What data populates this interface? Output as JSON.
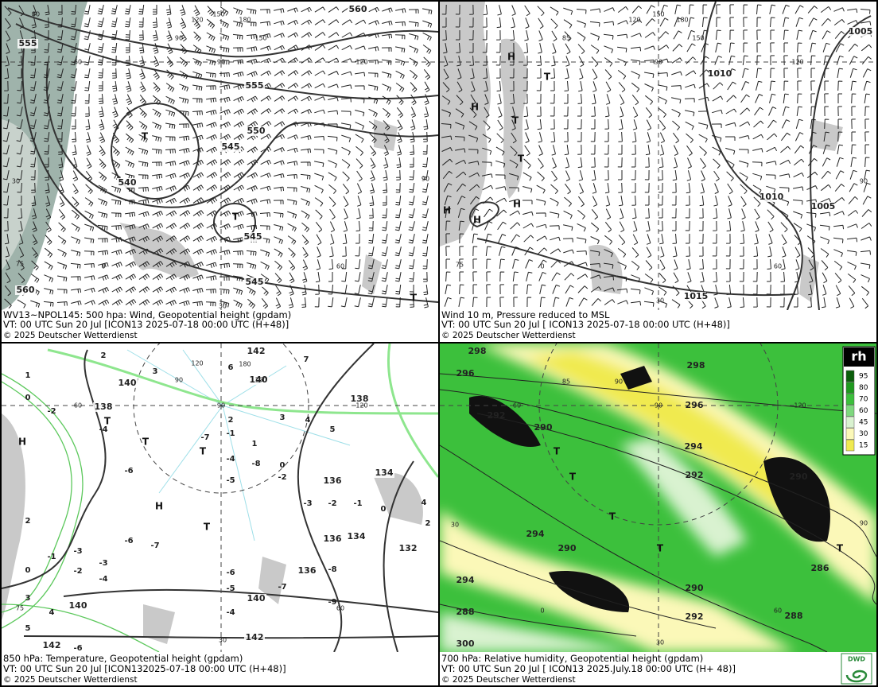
{
  "panels": [
    {
      "caption": [
        "WV13~NPOL145: 500 hpa: Wind, Geopotential height (gpdam)",
        "VT: 00 UTC Sun  20 Jul [ICON13 2025-07-18 00:00 UTC  (H+48)]",
        "© 2025 Deutscher Wetterdienst"
      ],
      "contour_labels": [
        "560",
        "555",
        "555",
        "550",
        "545",
        "540",
        "545",
        "545",
        "560"
      ],
      "markers": [
        "T",
        "T",
        "T"
      ],
      "grid_labels": [
        "80",
        "120",
        "150",
        "180",
        "150",
        "90",
        "60",
        "90",
        "120",
        "30",
        "90",
        "75",
        "0",
        "60",
        "30"
      ]
    },
    {
      "caption": [
        "Wind 10 m, Pressure reduced to MSL",
        "VT: 00 UTC Sun  20 Jul [ ICON13 2025-07-18 00:00 UTC (H+48)]",
        "© 2025 Deutscher Wetterdienst"
      ],
      "contour_labels": [
        "1005",
        "1010",
        "1010",
        "1005",
        "1015"
      ],
      "markers": [
        "H",
        "T",
        "H",
        "T",
        "T",
        "H",
        "H",
        "H"
      ],
      "grid_labels": [
        "120",
        "150",
        "180",
        "150",
        "85",
        "90",
        "120",
        "90",
        "75",
        "0",
        "60",
        "30"
      ]
    },
    {
      "caption": [
        "850 hPa:  Temperature, Geopotential height (gpdam)",
        "VT: 00 UTC Sun  20 Jul [ICON132025-07-18 00:00 UTC (H+48)]",
        "© 2025 Deutscher Wetterdienst"
      ],
      "contour_labels": [
        "142",
        "140",
        "140",
        "138",
        "138",
        "136",
        "134",
        "136",
        "134",
        "132",
        "136",
        "140",
        "140",
        "142",
        "142"
      ],
      "temperature_labels": [
        "1",
        "2",
        "3",
        "6",
        "7",
        "0",
        "-2",
        "-4",
        "2",
        "3",
        "4",
        "5",
        "-7",
        "-1",
        "1",
        "-4",
        "-8",
        "0",
        "-5",
        "-2",
        "-6",
        "-3",
        "-2",
        "-1",
        "0",
        "4",
        "2",
        "2",
        "-6",
        "-7",
        "-1",
        "-3",
        "-2",
        "-3",
        "-4",
        "0",
        "3",
        "4",
        "-6",
        "-5",
        "-7",
        "-8",
        "-4",
        "5",
        "-6",
        "-9"
      ],
      "markers": [
        "T",
        "T",
        "T",
        "H",
        "H",
        "T"
      ],
      "grid_labels": [
        "120",
        "180",
        "90",
        "150",
        "60",
        "90",
        "120",
        "75",
        "60",
        "30"
      ]
    },
    {
      "caption": [
        "700 hPa:  Relative humidity, Geopotential height (gpdam)",
        "VT: 00 UTC Sun  20 Jul [ ICON13  2025.July.18 00:00 UTC (H+ 48)]",
        "© 2025 Deutscher Wetterdienst"
      ],
      "contour_labels": [
        "298",
        "298",
        "296",
        "296",
        "292",
        "290",
        "294",
        "292",
        "290",
        "294",
        "290",
        "286",
        "290",
        "292",
        "288",
        "288",
        "300",
        "294"
      ],
      "markers": [
        "T",
        "T",
        "T",
        "T",
        "T"
      ],
      "grid_labels": [
        "85",
        "90",
        "60",
        "90",
        "120",
        "30",
        "90",
        "0",
        "60",
        "30"
      ]
    }
  ],
  "legend": {
    "title": "rh",
    "levels": [
      {
        "label": "95",
        "color": "#0b5e0b"
      },
      {
        "label": "80",
        "color": "#1f9a1f"
      },
      {
        "label": "70",
        "color": "#3cc03c"
      },
      {
        "label": "60",
        "color": "#7ed87e"
      },
      {
        "label": "45",
        "color": "#d9f2d0"
      },
      {
        "label": "30",
        "color": "#fbf8b8"
      },
      {
        "label": "15",
        "color": "#f0ea50"
      }
    ]
  },
  "logo": "DWD"
}
